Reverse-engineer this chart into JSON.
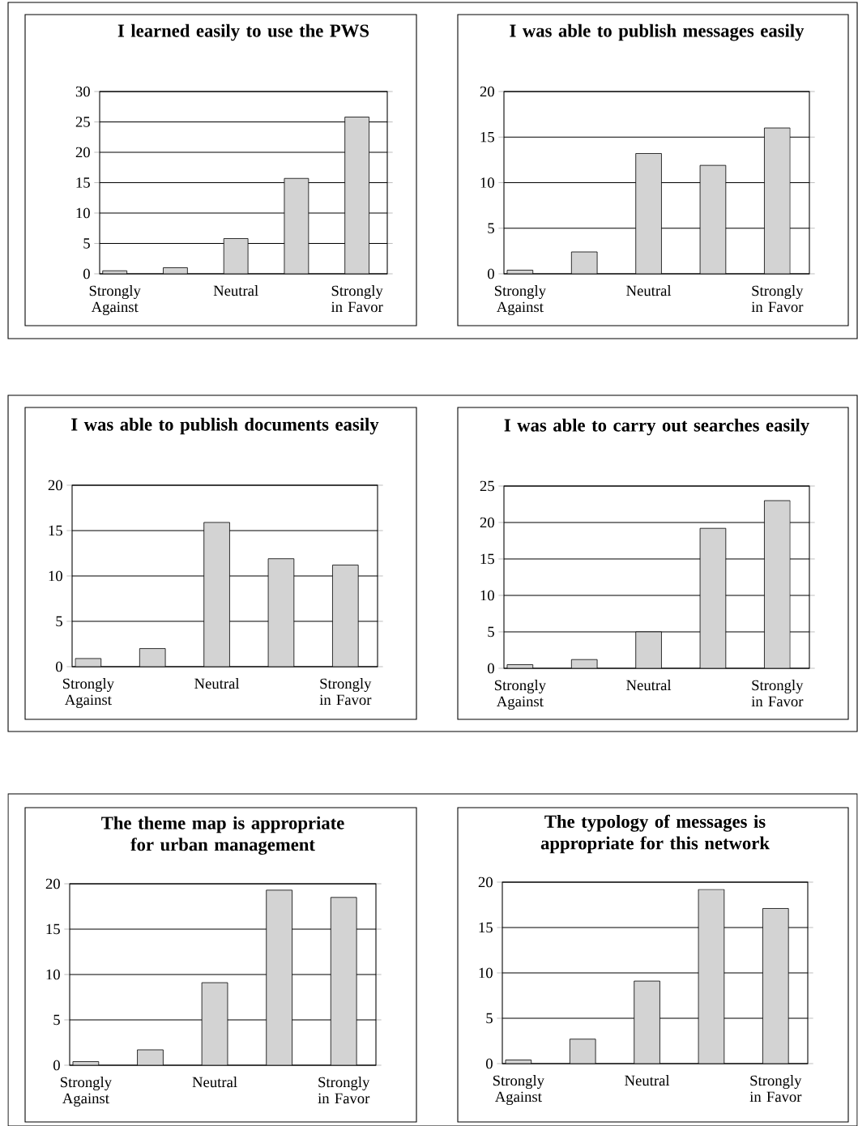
{
  "chart_data": [
    {
      "type": "bar",
      "title": "I learned easily to use the PWS",
      "categories": [
        "Strongly Against",
        null,
        "Neutral",
        null,
        "Strongly in Favor"
      ],
      "values": [
        0.5,
        1,
        5.8,
        15.7,
        25.8
      ],
      "color": "#d3d3d3",
      "ylim": [
        0,
        30
      ],
      "yticks": [
        0,
        5,
        10,
        15,
        20,
        25,
        30
      ],
      "grid": "y"
    },
    {
      "type": "bar",
      "title": "I was able to publish messages easily",
      "categories": [
        "Strongly Against",
        null,
        "Neutral",
        null,
        "Strongly in Favor"
      ],
      "values": [
        0.4,
        2.4,
        13.2,
        11.9,
        16
      ],
      "color": "#d3d3d3",
      "ylim": [
        0,
        20
      ],
      "yticks": [
        0,
        5,
        10,
        15,
        20
      ],
      "grid": "y"
    },
    {
      "type": "bar",
      "title": "I was able to publish documents easily",
      "categories": [
        "Strongly Against",
        null,
        "Neutral",
        null,
        "Strongly in Favor"
      ],
      "values": [
        0.9,
        2,
        15.9,
        11.9,
        11.2
      ],
      "color": "#d3d3d3",
      "ylim": [
        0,
        20
      ],
      "yticks": [
        0,
        5,
        10,
        15,
        20
      ],
      "grid": "y"
    },
    {
      "type": "bar",
      "title": "I was able to carry out searches easily",
      "categories": [
        "Strongly Against",
        null,
        "Neutral",
        null,
        "Strongly in Favor"
      ],
      "values": [
        0.5,
        1.2,
        5,
        19.2,
        23
      ],
      "color": "#d3d3d3",
      "ylim": [
        0,
        25
      ],
      "yticks": [
        0,
        5,
        10,
        15,
        20,
        25
      ],
      "grid": "y"
    },
    {
      "type": "bar",
      "title": "The theme map is appropriate for urban management",
      "categories": [
        "Strongly Against",
        null,
        "Neutral",
        null,
        "Strongly in Favor"
      ],
      "values": [
        0.4,
        1.7,
        9.1,
        19.3,
        18.5
      ],
      "color": "#d3d3d3",
      "ylim": [
        0,
        20
      ],
      "yticks": [
        0,
        5,
        10,
        15,
        20
      ],
      "grid": "y"
    },
    {
      "type": "bar",
      "title": "The typology of messages is appropriate for this network",
      "categories": [
        "Strongly Against",
        null,
        "Neutral",
        null,
        "Strongly in Favor"
      ],
      "values": [
        0.4,
        2.7,
        9.1,
        19.2,
        17.1
      ],
      "color": "#d3d3d3",
      "ylim": [
        0,
        20
      ],
      "yticks": [
        0,
        5,
        10,
        15,
        20
      ],
      "grid": "y"
    }
  ]
}
